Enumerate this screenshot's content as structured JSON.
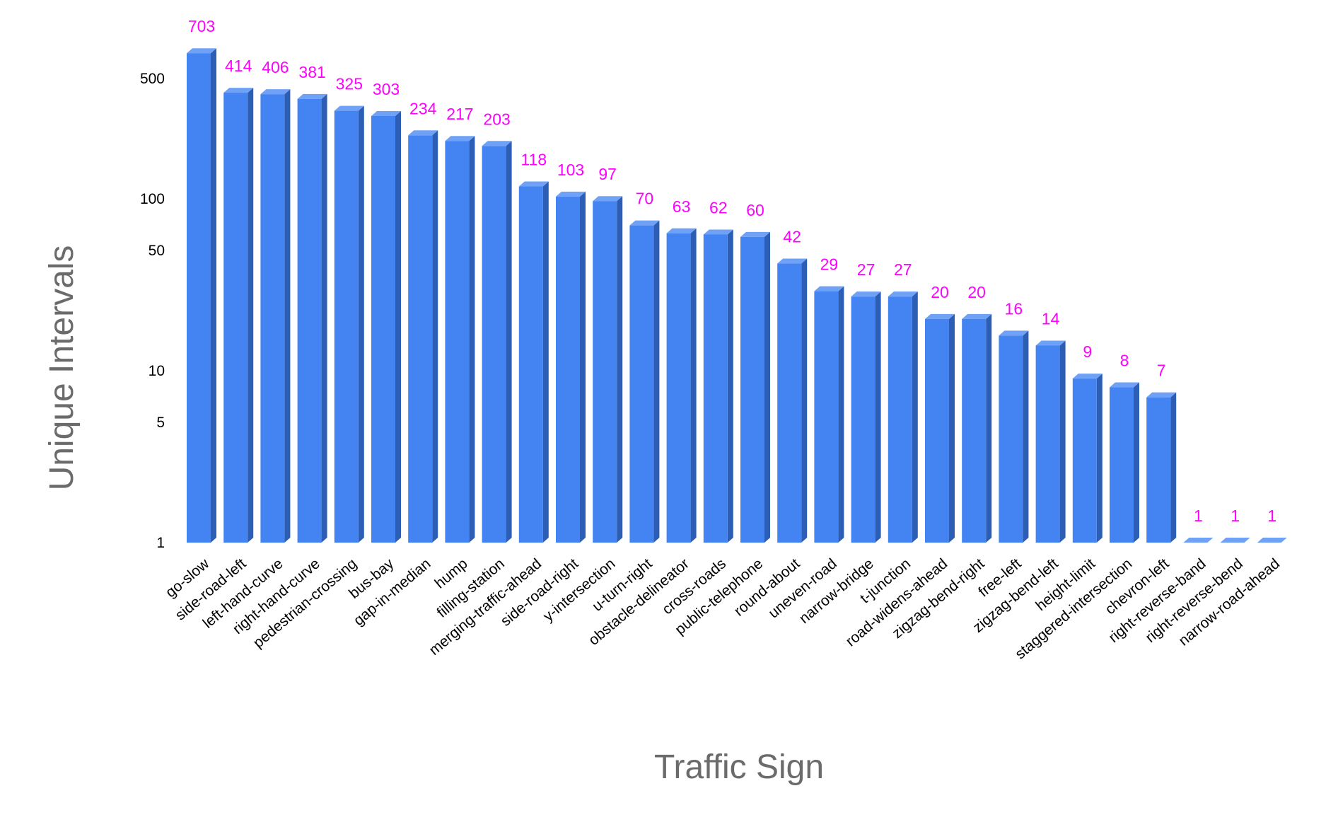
{
  "colors": {
    "bar_front": "#4484F2",
    "bar_side": "#2C5EB6",
    "bar_top": "#6FA2F6",
    "value_label": "#FF00FF",
    "axis_title": "#6b6b6b",
    "tick_label": "#000000"
  },
  "chart_data": {
    "type": "bar",
    "style": "3d",
    "xlabel": "Traffic Sign",
    "ylabel": "Unique Intervals",
    "yscale": "log",
    "ylim": [
      1,
      820
    ],
    "yticks": [
      1,
      5,
      10,
      50,
      100,
      500
    ],
    "ytick_labels": [
      "1",
      "5",
      "10",
      "50",
      "100",
      "500"
    ],
    "grid": false,
    "legend": "none",
    "categories": [
      "go-slow",
      "side-road-left",
      "left-hand-curve",
      "right-hand-curve",
      "pedestrian-crossing",
      "bus-bay",
      "gap-in-median",
      "hump",
      "filling-station",
      "merging-traffic-ahead",
      "side-road-right",
      "y-intersection",
      "u-turn-right",
      "obstacle-delineator",
      "cross-roads",
      "public-telephone",
      "round-about",
      "uneven-road",
      "narrow-bridge",
      "t-junction",
      "road-widens-ahead",
      "zigzag-bend-right",
      "free-left",
      "zigzag-bend-left",
      "height-limit",
      "staggered-intersection",
      "chevron-left",
      "right-reverse-band",
      "right-reverse-bend",
      "narrow-road-ahead"
    ],
    "values": [
      703,
      414,
      406,
      381,
      325,
      303,
      234,
      217,
      203,
      118,
      103,
      97,
      70,
      63,
      62,
      60,
      42,
      29,
      27,
      27,
      20,
      20,
      16,
      14,
      9,
      8,
      7,
      1,
      1,
      1
    ],
    "value_labels": [
      "703",
      "414",
      "406",
      "381",
      "325",
      "303",
      "234",
      "217",
      "203",
      "118",
      "103",
      "97",
      "70",
      "63",
      "62",
      "60",
      "42",
      "29",
      "27",
      "27",
      "20",
      "20",
      "16",
      "14",
      "9",
      "8",
      "7",
      "1",
      "1",
      "1"
    ]
  }
}
